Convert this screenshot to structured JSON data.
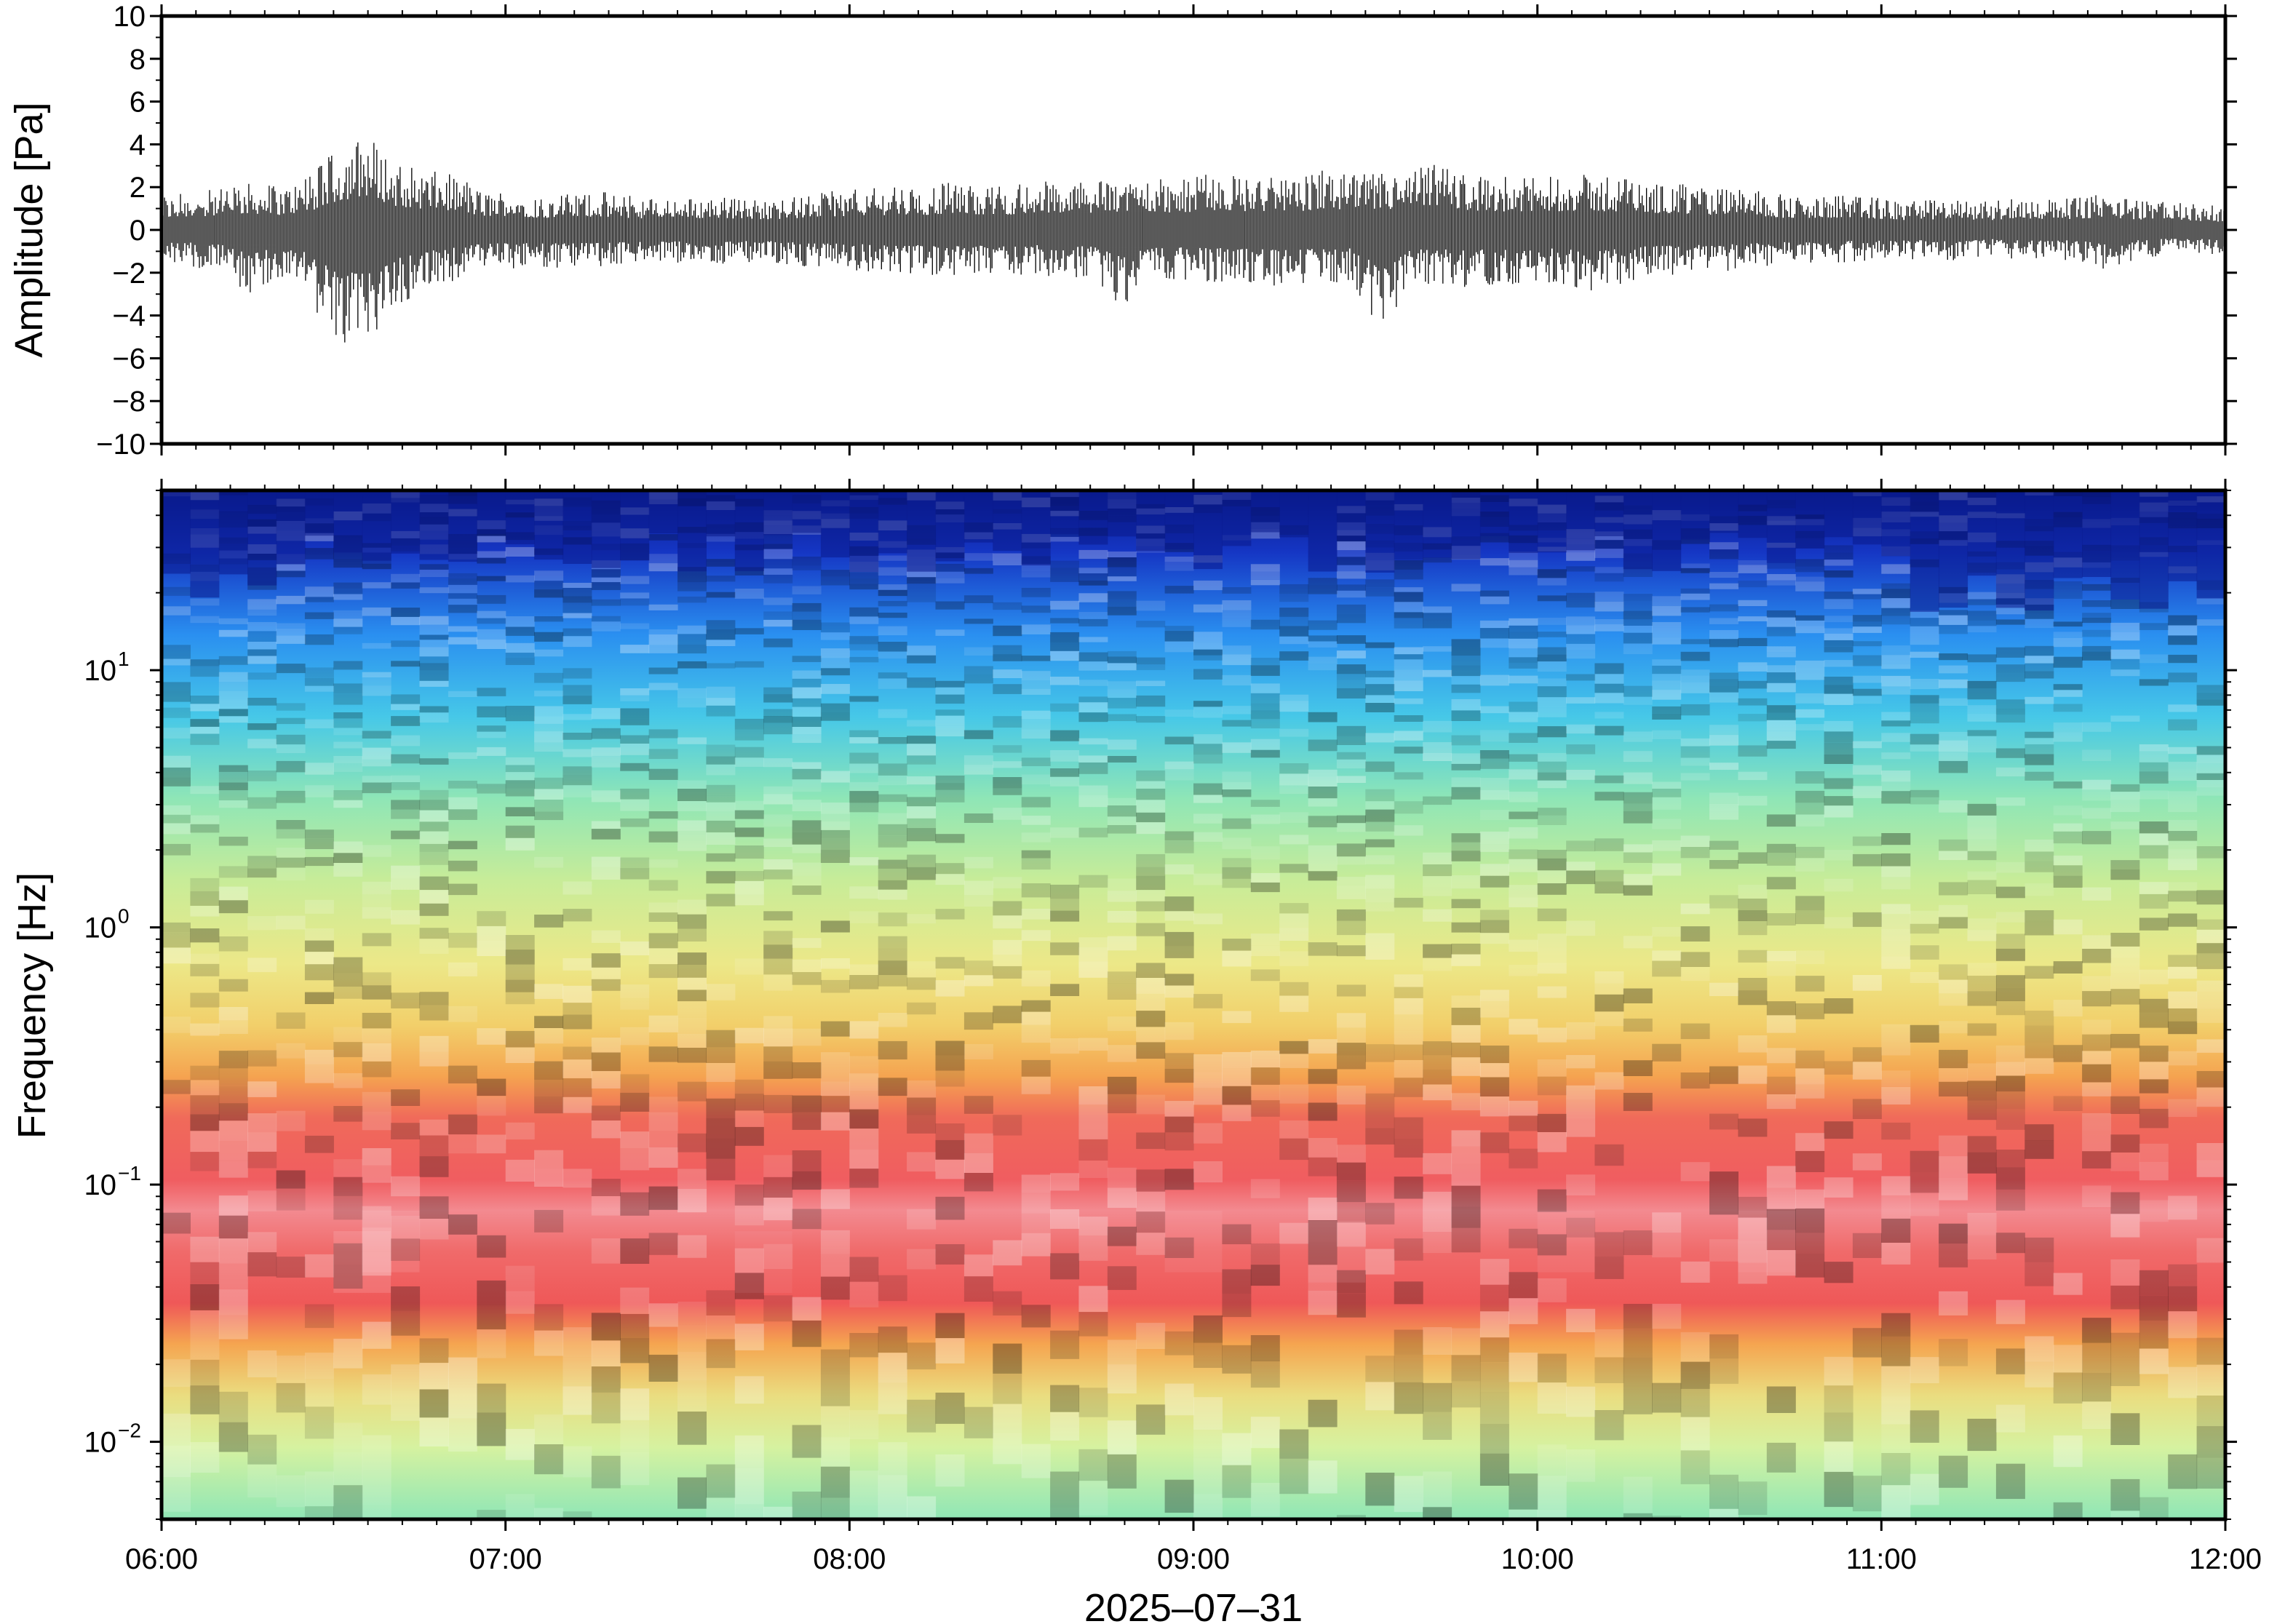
{
  "chart_data": [
    {
      "type": "line",
      "name": "waveform",
      "ylabel": "Amplitude [Pa]",
      "ylim": [
        -10,
        10
      ],
      "yticks": [
        10,
        8,
        6,
        4,
        2,
        0,
        -2,
        -4,
        -6,
        -8,
        -10
      ],
      "yticks_text": [
        "10",
        "8",
        "6",
        "4",
        "2",
        "0",
        "−2",
        "−4",
        "−6",
        "−8",
        "−10"
      ],
      "x_range": [
        "06:00",
        "12:00"
      ],
      "grid": false,
      "series": [
        {
          "description_of_values": "envelope (max/min amplitude in Pa) per 5-minute segment, 06:00 to 12:00",
          "env_max": [
            1.5,
            1.8,
            1.9,
            2.2,
            2.0,
            2.4,
            3.8,
            4.6,
            3.2,
            2.8,
            2.6,
            1.8,
            1.9,
            1.6,
            1.7,
            1.8,
            1.6,
            1.5,
            1.5,
            1.6,
            1.5,
            1.4,
            1.6,
            1.8,
            1.9,
            2.0,
            1.9,
            2.2,
            2.1,
            2.0,
            2.3,
            2.2,
            2.2,
            2.4,
            2.4,
            2.3,
            2.6,
            2.5,
            2.5,
            2.3,
            2.8,
            2.6,
            2.7,
            2.7,
            3.3,
            2.6,
            2.5,
            2.4,
            2.5,
            2.6,
            2.4,
            2.3,
            2.2,
            2.0,
            2.0,
            1.8,
            1.6,
            1.5,
            1.6,
            1.5,
            1.3,
            1.4,
            1.4,
            1.3,
            1.6,
            1.4,
            1.5,
            1.7,
            1.4,
            1.3,
            1.2,
            1.1
          ],
          "env_min": [
            -1.6,
            -1.7,
            -2.0,
            -3.0,
            -2.4,
            -3.0,
            -5.8,
            -5.6,
            -3.5,
            -2.9,
            -2.4,
            -1.8,
            -1.8,
            -1.7,
            -1.8,
            -1.7,
            -1.6,
            -1.6,
            -1.5,
            -1.6,
            -1.5,
            -1.5,
            -1.7,
            -1.8,
            -1.9,
            -2.1,
            -2.0,
            -2.2,
            -2.1,
            -2.2,
            -2.0,
            -2.3,
            -2.1,
            -3.6,
            -2.4,
            -2.3,
            -2.4,
            -2.5,
            -2.6,
            -2.6,
            -2.5,
            -2.4,
            -5.3,
            -2.6,
            -2.6,
            -2.7,
            -2.5,
            -2.6,
            -2.4,
            -2.9,
            -2.6,
            -2.2,
            -2.1,
            -2.0,
            -1.9,
            -1.7,
            -1.6,
            -1.7,
            -1.5,
            -1.4,
            -1.4,
            -1.3,
            -1.5,
            -1.2,
            -1.4,
            -1.4,
            -1.4,
            -2.0,
            -1.3,
            -1.2,
            -1.2,
            -1.2
          ]
        }
      ]
    },
    {
      "type": "heatmap",
      "name": "spectrogram",
      "xlabel": "2025–07–31",
      "ylabel": "Frequency [Hz]",
      "y_scale": "log",
      "ylim": [
        0.005,
        50
      ],
      "yticks": [
        10,
        1,
        0.1,
        0.01
      ],
      "yticks_base": [
        "10",
        "10",
        "10",
        "10"
      ],
      "yticks_exp": [
        "1",
        "0",
        "−1",
        "−2"
      ],
      "xticks": [
        "06:00",
        "07:00",
        "08:00",
        "09:00",
        "10:00",
        "11:00",
        "12:00"
      ],
      "colormap": "blue (low) → cyan → green → yellow → orange → red → pink (high)",
      "colors": [
        "#0a1a8c",
        "#1e6fe6",
        "#46c8e8",
        "#8fe6a6",
        "#e6ec8a",
        "#f5b350",
        "#f05a5a",
        "#f7a6b0"
      ],
      "description": "Spectral power is highest between 0.03 and 0.3 Hz (red/pink), especially near 06:30 and between 08:30 and 10:30; decreasing toward blue above 10 Hz; lowest frequencies (below 0.02 Hz) are green/yellow."
    }
  ]
}
